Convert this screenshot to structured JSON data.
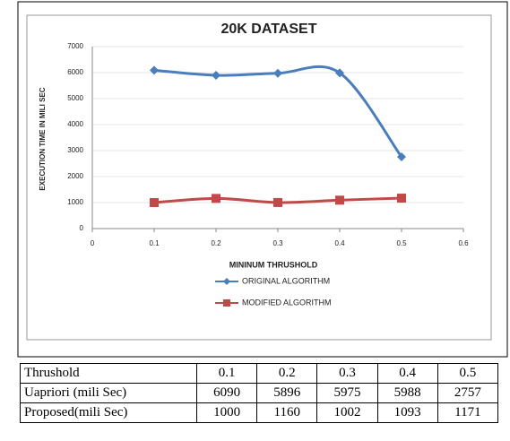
{
  "chart_data": {
    "type": "line",
    "title": "20K DATASET",
    "x_label": "MININUM THRUSHOLD",
    "y_label": "EXECUTION TIME IN MILI SEC",
    "x": [
      0.1,
      0.2,
      0.3,
      0.4,
      0.5
    ],
    "series": [
      {
        "name": "ORIGINAL ALGORITHM",
        "color": "#4a7ebb",
        "marker": "diamond",
        "values": [
          6090,
          5896,
          5975,
          5988,
          2757
        ]
      },
      {
        "name": "MODIFIED ALGORITHM",
        "color": "#be4b48",
        "marker": "square",
        "values": [
          1000,
          1160,
          1002,
          1093,
          1171
        ]
      }
    ],
    "xlim": [
      0,
      0.6
    ],
    "xticks": [
      0,
      0.1,
      0.2,
      0.3,
      0.4,
      0.5,
      0.6
    ],
    "ylim": [
      0,
      7000
    ],
    "yticks": [
      0,
      1000,
      2000,
      3000,
      4000,
      5000,
      6000,
      7000
    ],
    "grid": true,
    "legend": "bottom"
  },
  "table": {
    "header": [
      "Thrushold",
      "0.1",
      "0.2",
      "0.3",
      "0.4",
      "0.5"
    ],
    "rows": [
      [
        "Uapriori (mili Sec)",
        "6090",
        "5896",
        "5975",
        "5988",
        "2757"
      ],
      [
        "Proposed(mili Sec)",
        "1000",
        "1160",
        "1002",
        "1093",
        "1171"
      ]
    ]
  }
}
